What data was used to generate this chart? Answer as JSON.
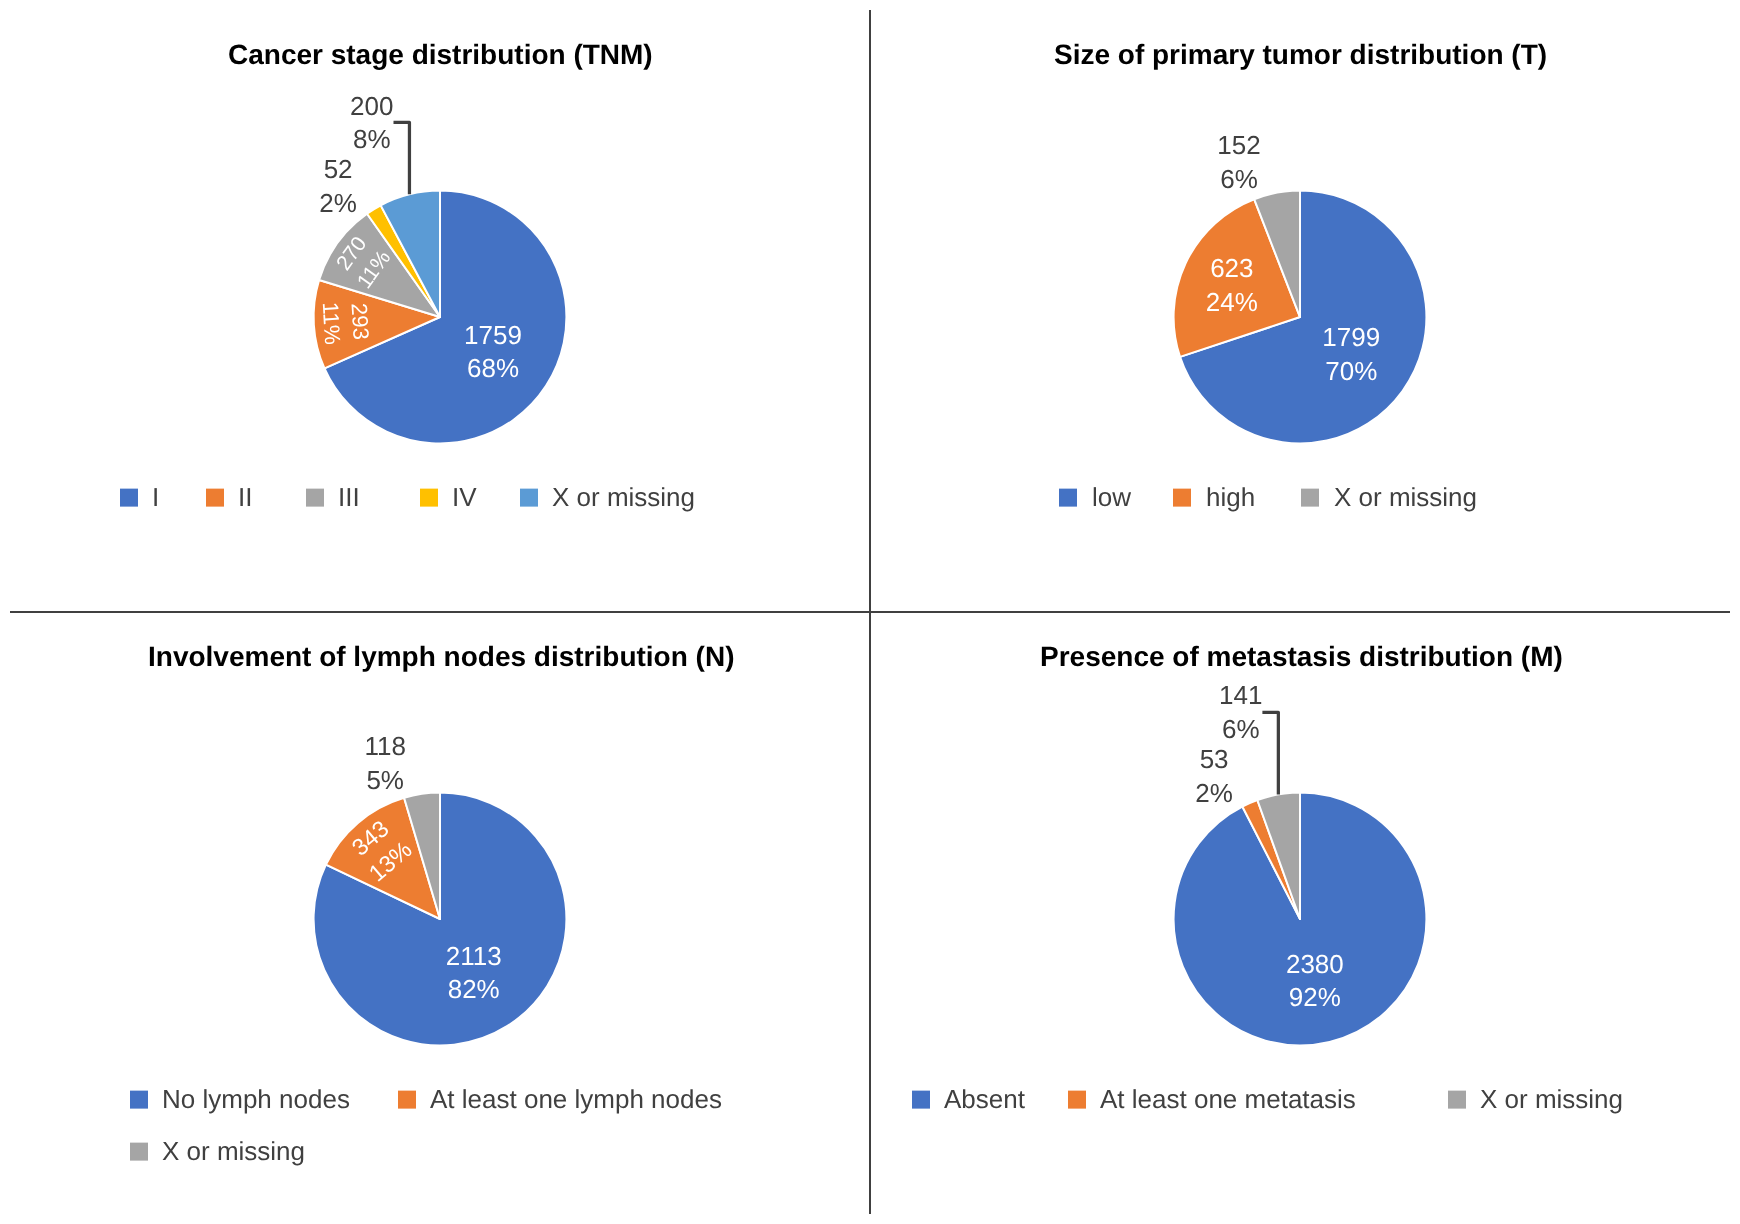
{
  "chart_data": [
    {
      "type": "pie",
      "title": "Cancer stage distribution (TNM)",
      "categories": [
        "I",
        "II",
        "III",
        "IV",
        "X or missing"
      ],
      "values": [
        1759,
        293,
        270,
        52,
        200
      ],
      "value_labels": [
        "1759\n68%",
        "293\n11%",
        "270\n11%",
        "52\n2%",
        "200\n8%"
      ],
      "colors": [
        "#4472c4",
        "#ed7d31",
        "#a5a5a5",
        "#ffc000",
        "#5b9bd5"
      ],
      "legend": "bottom"
    },
    {
      "type": "pie",
      "title": "Size of primary tumor distribution (T)",
      "categories": [
        "low",
        "high",
        "X or missing"
      ],
      "values": [
        1799,
        623,
        152
      ],
      "value_labels": [
        "1799\n70%",
        "623\n24%",
        "152\n6%"
      ],
      "colors": [
        "#4472c4",
        "#ed7d31",
        "#a5a5a5"
      ],
      "legend": "bottom"
    },
    {
      "type": "pie",
      "title": "Involvement of lymph nodes distribution (N)",
      "categories": [
        "No lymph nodes",
        "At least one lymph nodes",
        "X or missing"
      ],
      "values": [
        2113,
        343,
        118
      ],
      "value_labels": [
        "2113\n82%",
        "343\n13%",
        "118\n5%"
      ],
      "colors": [
        "#4472c4",
        "#ed7d31",
        "#a5a5a5"
      ],
      "legend": "bottom"
    },
    {
      "type": "pie",
      "title": "Presence of metastasis distribution (M)",
      "categories": [
        "Absent",
        "At least one metatasis",
        "X or missing"
      ],
      "values": [
        2380,
        53,
        141
      ],
      "value_labels": [
        "2380\n92%",
        "53\n2%",
        "141\n6%"
      ],
      "colors": [
        "#4472c4",
        "#ed7d31",
        "#a5a5a5"
      ],
      "legend": "bottom"
    }
  ]
}
